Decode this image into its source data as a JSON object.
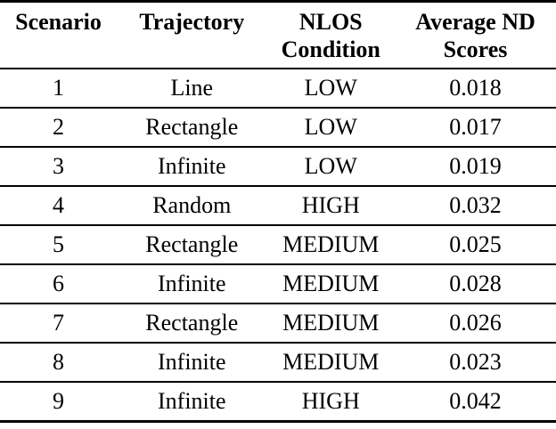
{
  "table": {
    "columns": [
      {
        "line1": "Scenario",
        "line2": ""
      },
      {
        "line1": "Trajectory",
        "line2": ""
      },
      {
        "line1": "NLOS",
        "line2": "Condition"
      },
      {
        "line1": "Average ND",
        "line2": "Scores"
      }
    ],
    "rows": [
      [
        "1",
        "Line",
        "LOW",
        "0.018"
      ],
      [
        "2",
        "Rectangle",
        "LOW",
        "0.017"
      ],
      [
        "3",
        "Infinite",
        "LOW",
        "0.019"
      ],
      [
        "4",
        "Random",
        "HIGH",
        "0.032"
      ],
      [
        "5",
        "Rectangle",
        "MEDIUM",
        "0.025"
      ],
      [
        "6",
        "Infinite",
        "MEDIUM",
        "0.028"
      ],
      [
        "7",
        "Rectangle",
        "MEDIUM",
        "0.026"
      ],
      [
        "8",
        "Infinite",
        "MEDIUM",
        "0.023"
      ],
      [
        "9",
        "Infinite",
        "HIGH",
        "0.042"
      ]
    ]
  },
  "colors": {
    "text": "#000000",
    "rule": "#000000",
    "background": "#ffffff"
  }
}
